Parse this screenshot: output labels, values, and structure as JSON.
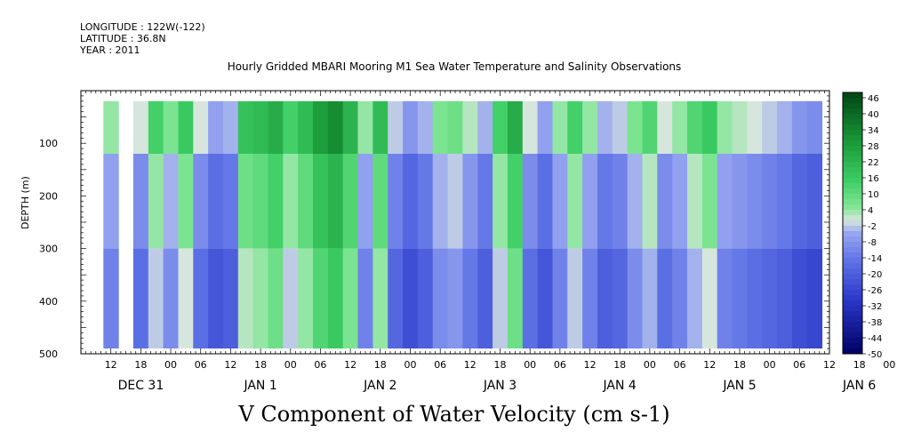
{
  "header": {
    "longitude": "LONGITUDE : 122W(-122)",
    "latitude": "LATITUDE : 36.8N",
    "year": "YEAR : 2011",
    "title": "Hourly Gridded MBARI Mooring M1 Sea Water Temperature and Salinity Observations"
  },
  "chart_data": {
    "type": "heatmap",
    "title": "Hourly Gridded MBARI Mooring M1 Sea Water Temperature and Salinity Observations",
    "caption": "V Component of Water Velocity (cm s-1)",
    "ylabel": "DEPTH (m)",
    "y_reversed": true,
    "ylim": [
      500,
      0
    ],
    "y_ticks": [
      100,
      200,
      300,
      400,
      500
    ],
    "y_tick_labels": [
      "100",
      "200",
      "300",
      "400",
      "500"
    ],
    "x_range_hours": [
      0,
      150
    ],
    "x_tick_hour_labels": [
      "12",
      "18",
      "00",
      "06",
      "12",
      "18",
      "00",
      "06",
      "12",
      "18",
      "00",
      "06",
      "12",
      "18",
      "00",
      "06",
      "12",
      "18",
      "00",
      "06",
      "12",
      "18",
      "00",
      "06",
      "12",
      "18",
      "00",
      "06",
      "12",
      "18",
      "00"
    ],
    "x_day_labels": [
      "DEC 31",
      "JAN  1",
      "JAN  2",
      "JAN  3",
      "JAN  4",
      "JAN  5",
      "JAN  6"
    ],
    "data_depth_range": [
      20,
      490
    ],
    "colorbar": {
      "levels": [
        48,
        46,
        44,
        42,
        40,
        38,
        36,
        34,
        32,
        30,
        28,
        26,
        24,
        22,
        20,
        18,
        16,
        14,
        12,
        10,
        8,
        6,
        4,
        2,
        0,
        -2,
        -4,
        -6,
        -8,
        -10,
        -12,
        -14,
        -16,
        -18,
        -20,
        -22,
        -24,
        -26,
        -28,
        -30,
        -32,
        -34,
        -36,
        -38,
        -40,
        -42,
        -44,
        -46,
        -48,
        -50
      ],
      "labels": [
        "46",
        "40",
        "34",
        "28",
        "22",
        "16",
        "10",
        "4",
        "-2",
        "-8",
        "-14",
        "-20",
        "-26",
        "-32",
        "-38",
        "-44",
        "-50"
      ],
      "colors": {
        "max": "#003300",
        "strong_positive": "#1a9a3a",
        "positive": "#55dd77",
        "zero": "#ddeedd",
        "negative": "#8899ee",
        "strong_negative": "#2233bb",
        "min": "#000066"
      }
    },
    "columns": [
      {
        "x": 6,
        "v": -6
      },
      {
        "x": 12,
        "v": -10
      },
      {
        "x": 15,
        "v": 4
      },
      {
        "x": 18,
        "v": -4
      },
      {
        "x": 21,
        "v": 6
      },
      {
        "x": 24,
        "v": -10
      },
      {
        "x": 27,
        "v": -16
      },
      {
        "x": 30,
        "v": -14
      },
      {
        "x": 33,
        "v": 8
      },
      {
        "x": 36,
        "v": 10
      },
      {
        "x": 39,
        "v": 14
      },
      {
        "x": 42,
        "v": 4
      },
      {
        "x": 45,
        "v": 10
      },
      {
        "x": 48,
        "v": 18
      },
      {
        "x": 51,
        "v": 22
      },
      {
        "x": 54,
        "v": 12
      },
      {
        "x": 57,
        "v": -6
      },
      {
        "x": 60,
        "v": 10
      },
      {
        "x": 63,
        "v": -12
      },
      {
        "x": 66,
        "v": -18
      },
      {
        "x": 69,
        "v": -14
      },
      {
        "x": 72,
        "v": -4
      },
      {
        "x": 75,
        "v": -2
      },
      {
        "x": 78,
        "v": -8
      },
      {
        "x": 81,
        "v": -14
      },
      {
        "x": 84,
        "v": 4
      },
      {
        "x": 87,
        "v": 14
      },
      {
        "x": 90,
        "v": -10
      },
      {
        "x": 93,
        "v": -16
      },
      {
        "x": 96,
        "v": -6
      },
      {
        "x": 99,
        "v": 4
      },
      {
        "x": 102,
        "v": -6
      },
      {
        "x": 105,
        "v": -14
      },
      {
        "x": 108,
        "v": -12
      },
      {
        "x": 111,
        "v": -4
      },
      {
        "x": 114,
        "v": 2
      },
      {
        "x": 117,
        "v": -10
      },
      {
        "x": 120,
        "v": -6
      },
      {
        "x": 123,
        "v": 2
      },
      {
        "x": 126,
        "v": 6
      },
      {
        "x": 129,
        "v": -6
      },
      {
        "x": 132,
        "v": -8
      },
      {
        "x": 135,
        "v": -10
      },
      {
        "x": 138,
        "v": -12
      },
      {
        "x": 141,
        "v": -14
      },
      {
        "x": 144,
        "v": -18
      },
      {
        "x": 147,
        "v": -20
      }
    ]
  }
}
